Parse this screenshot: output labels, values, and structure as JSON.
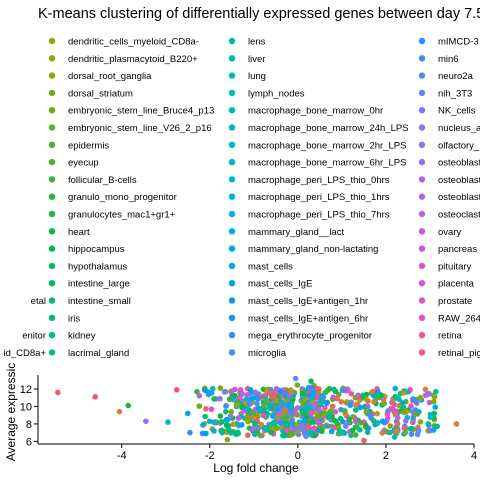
{
  "chart_data": {
    "type": "scatter",
    "title": "K-means clustering of differentially expressed genes between day 7.5",
    "xlabel": "Log fold change",
    "ylabel": "Average expressic",
    "xlim": [
      -5.9,
      4.0
    ],
    "ylim": [
      5.7,
      13.6
    ],
    "x_ticks": [
      "-4",
      "-2",
      "0",
      "2",
      "4"
    ],
    "y_ticks": [
      "6",
      "8",
      "10",
      "12"
    ],
    "grid": false,
    "legend_placement": "top",
    "legend": [
      {
        "label": "",
        "color": "#e76b4f"
      },
      {
        "label": "",
        "color": "#e07a3a"
      },
      {
        "label": "",
        "color": "#d2853a"
      },
      {
        "label": "",
        "color": "#c48f24"
      },
      {
        "label": "",
        "color": "#b59a1b"
      },
      {
        "label": "",
        "color": "#a3a513"
      },
      {
        "label": "",
        "color": "#8ca816"
      },
      {
        "label": "etal",
        "color": "#77ac1e"
      },
      {
        "label": "",
        "color": "#5eb026"
      },
      {
        "label": "enitor",
        "color": "#40b32f"
      },
      {
        "label": "id_CD8a+",
        "color": "#1bb33c"
      },
      {
        "label": "dendritic_cells_myeloid_CD8a-",
        "color": "#97a40c"
      },
      {
        "label": "dendritic_plasmacytoid_B220+",
        "color": "#8da60c"
      },
      {
        "label": "dorsal_root_ganglia",
        "color": "#83a810"
      },
      {
        "label": "dorsal_striatum",
        "color": "#78ab14"
      },
      {
        "label": "embryonic_stem_line_Bruce4_p13",
        "color": "#6dad19"
      },
      {
        "label": "embryonic_stem_line_V26_2_p16",
        "color": "#61b01f"
      },
      {
        "label": "epidermis",
        "color": "#55b224"
      },
      {
        "label": "eyecup",
        "color": "#48b42a"
      },
      {
        "label": "follicular_B-cells",
        "color": "#3ab530"
      },
      {
        "label": "granulo_mono_progenitor",
        "color": "#2bb636"
      },
      {
        "label": "granulocytes_mac1+gr1+",
        "color": "#1bb73d"
      },
      {
        "label": "heart",
        "color": "#0cb845"
      },
      {
        "label": "hippocampus",
        "color": "#00b94e"
      },
      {
        "label": "hypothalamus",
        "color": "#00ba57"
      },
      {
        "label": "intestine_large",
        "color": "#00ba61"
      },
      {
        "label": "intestine_small",
        "color": "#00bb6b"
      },
      {
        "label": "iris",
        "color": "#00bb75"
      },
      {
        "label": "kidney",
        "color": "#00bc80"
      },
      {
        "label": "lacrimal_gland",
        "color": "#00bc89"
      },
      {
        "label": "lens",
        "color": "#00bc94"
      },
      {
        "label": "liver",
        "color": "#00bc9e"
      },
      {
        "label": "lung",
        "color": "#00bca7"
      },
      {
        "label": "lymph_nodes",
        "color": "#00bbb0"
      },
      {
        "label": "macrophage_bone_marrow_0hr",
        "color": "#00bab8"
      },
      {
        "label": "macrophage_bone_marrow_24h_LPS",
        "color": "#00b9c0"
      },
      {
        "label": "macrophage_bone_marrow_2hr_LPS",
        "color": "#00b8c7"
      },
      {
        "label": "macrophage_bone_marrow_6hr_LPS",
        "color": "#00b6ce"
      },
      {
        "label": "macrophage_peri_LPS_thio_0hrs",
        "color": "#00b4d5"
      },
      {
        "label": "macrophage_peri_LPS_thio_1hrs",
        "color": "#00b2db"
      },
      {
        "label": "macrophage_peri_LPS_thio_7hrs",
        "color": "#00afe0"
      },
      {
        "label": "mammary_gland__lact",
        "color": "#00ace5"
      },
      {
        "label": "mammary_gland_non-lactating",
        "color": "#00a9e9"
      },
      {
        "label": "mast_cells",
        "color": "#00a5ed"
      },
      {
        "label": "mast_cells_IgE",
        "color": "#00a1f1"
      },
      {
        "label": "mast_cells_IgE+antigen_1hr",
        "color": "#009df4"
      },
      {
        "label": "mast_cells_IgE+antigen_6hr",
        "color": "#0c98f6"
      },
      {
        "label": "mega_erythrocyte_progenitor",
        "color": "#2a94f8"
      },
      {
        "label": "microglia",
        "color": "#3d8ff9"
      },
      {
        "label": "mIMCD-3",
        "color": "#1e90ff"
      },
      {
        "label": "min6",
        "color": "#3c8dff"
      },
      {
        "label": "neuro2a",
        "color": "#5488fb"
      },
      {
        "label": "nih_3T3",
        "color": "#6583f8"
      },
      {
        "label": "NK_cells",
        "color": "#747ef5"
      },
      {
        "label": "nucleus_a",
        "color": "#8378f2"
      },
      {
        "label": "olfactory_",
        "color": "#9273ef"
      },
      {
        "label": "osteoblast",
        "color": "#9e6dec"
      },
      {
        "label": "osteoblast",
        "color": "#a869ea"
      },
      {
        "label": "osteoblast",
        "color": "#b165e7"
      },
      {
        "label": "osteoclast",
        "color": "#bb61e2"
      },
      {
        "label": "ovary",
        "color": "#c45ddd"
      },
      {
        "label": "pancreas",
        "color": "#cd59d6"
      },
      {
        "label": "pituitary",
        "color": "#d557ce"
      },
      {
        "label": "placenta",
        "color": "#dc55c4"
      },
      {
        "label": "prostate",
        "color": "#e254b9"
      },
      {
        "label": "RAW_264",
        "color": "#e854ad"
      },
      {
        "label": "retina",
        "color": "#ec55a0"
      },
      {
        "label": "retinal_pig",
        "color": "#ef5793"
      }
    ],
    "outliers": [
      {
        "x": -5.45,
        "y": 11.6,
        "color": "#ef5a6f"
      },
      {
        "x": -4.6,
        "y": 11.1,
        "color": "#ef5a6f"
      },
      {
        "x": -4.05,
        "y": 9.4,
        "color": "#e07a3a"
      },
      {
        "x": -3.85,
        "y": 10.1,
        "color": "#1bb33c"
      },
      {
        "x": -3.45,
        "y": 8.3,
        "color": "#9e6dec"
      },
      {
        "x": -2.95,
        "y": 8.2,
        "color": "#00b4d5"
      },
      {
        "x": -2.75,
        "y": 11.9,
        "color": "#ef5a6f"
      },
      {
        "x": -2.5,
        "y": 9.2,
        "color": "#00a5ed"
      },
      {
        "x": -2.45,
        "y": 7.0,
        "color": "#2a94f8"
      },
      {
        "x": 3.1,
        "y": 9.2,
        "color": "#00bb75"
      },
      {
        "x": 3.6,
        "y": 8.0,
        "color": "#e07a3a"
      },
      {
        "x": 2.25,
        "y": 11.0,
        "color": "#00bc94"
      },
      {
        "x": 2.2,
        "y": 6.5,
        "color": "#00b8c7"
      },
      {
        "x": -0.05,
        "y": 13.2,
        "color": "#747ef5"
      },
      {
        "x": 0.3,
        "y": 12.9,
        "color": "#00ba61"
      },
      {
        "x": -1.6,
        "y": 6.2,
        "color": "#8ca816"
      },
      {
        "x": 1.5,
        "y": 6.1,
        "color": "#ef5a6f"
      }
    ],
    "clusters": [
      {
        "x_range": [
          -2.3,
          -0.1
        ],
        "y_range": [
          6.2,
          12.6
        ],
        "count": 340
      },
      {
        "x_range": [
          0.1,
          3.2
        ],
        "y_range": [
          6.2,
          12.6
        ],
        "count": 340
      },
      {
        "x_range": [
          -0.6,
          0.55
        ],
        "y_range": [
          6.0,
          13.0
        ],
        "count": 120
      }
    ]
  }
}
